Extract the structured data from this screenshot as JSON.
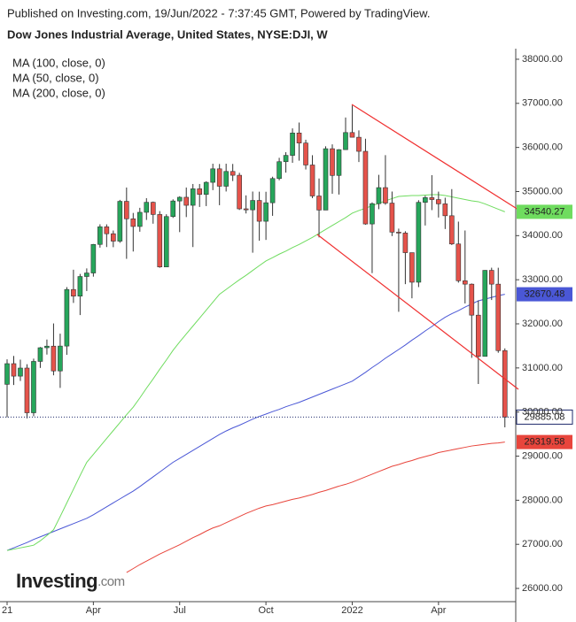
{
  "header": {
    "published": "Published on Investing.com, 19/Jun/2022 - 7:37:45 GMT, Powered by TradingView."
  },
  "logo": {
    "name": "Investing",
    "suffix": ".com"
  },
  "chart_data": {
    "type": "candlestick",
    "title": "Dow Jones Industrial Average, United States, NYSE:DJI, W",
    "categories": [
      "21",
      null,
      null,
      null,
      null,
      null,
      null,
      null,
      null,
      null,
      null,
      null,
      null,
      "Apr",
      null,
      null,
      null,
      null,
      null,
      null,
      null,
      null,
      null,
      null,
      null,
      null,
      "Jul",
      null,
      null,
      null,
      null,
      null,
      null,
      null,
      null,
      null,
      null,
      null,
      null,
      "Oct",
      null,
      null,
      null,
      null,
      null,
      null,
      null,
      null,
      null,
      null,
      null,
      null,
      "2022",
      null,
      null,
      null,
      null,
      null,
      null,
      null,
      null,
      null,
      null,
      null,
      null,
      "Apr",
      null,
      null,
      null,
      null,
      null,
      null,
      null,
      null,
      null,
      null
    ],
    "open": [
      30628,
      31097,
      30814,
      30997,
      29983,
      31148,
      31458,
      31494,
      30932,
      31496,
      32779,
      32628,
      33073,
      33153,
      33801,
      34200,
      34043,
      33875,
      34778,
      34382,
      34208,
      34529,
      34756,
      34480,
      33290,
      34433,
      34786,
      34870,
      34688,
      35062,
      34935,
      35209,
      35515,
      35120,
      35456,
      35369,
      34608,
      34585,
      34798,
      34326,
      34746,
      35295,
      35677,
      35820,
      36328,
      36100,
      35602,
      34899,
      34580,
      35971,
      35365,
      35950,
      36338,
      36231,
      35912,
      34265,
      34725,
      35089,
      34738,
      34079,
      34059,
      33614,
      32944,
      34755,
      34862,
      34818,
      34721,
      34451,
      33811,
      32977,
      32900,
      32197,
      31262,
      33213,
      32900,
      31393
    ],
    "high": [
      31194,
      31272,
      31188,
      31084,
      31211,
      31474,
      31644,
      32009,
      31777,
      32833,
      33227,
      33132,
      33257,
      33810,
      34257,
      34256,
      34116,
      34811,
      35091,
      34515,
      34631,
      34849,
      34773,
      34556,
      34485,
      34823,
      34893,
      35091,
      35171,
      35171,
      35233,
      35631,
      35625,
      35631,
      35626,
      35425,
      34913,
      35000,
      34997,
      34995,
      35336,
      35765,
      35892,
      36432,
      36565,
      36175,
      35824,
      35296,
      36026,
      36070,
      35961,
      36679,
      36952,
      36387,
      36198,
      34754,
      35379,
      35825,
      35000,
      34159,
      34100,
      33615,
      34804,
      34905,
      35372,
      34998,
      34860,
      35055,
      34318,
      34117,
      32915,
      32530,
      33218,
      33273,
      33272,
      31443
    ],
    "low": [
      29882,
      30613,
      30704,
      29856,
      29904,
      31000,
      31303,
      30833,
      30547,
      31297,
      32474,
      32199,
      32744,
      33070,
      33728,
      33741,
      33738,
      33837,
      33474,
      33640,
      34089,
      34356,
      34271,
      33271,
      33290,
      34402,
      34080,
      34421,
      33741,
      34650,
      34670,
      35032,
      34690,
      35001,
      35238,
      34582,
      34503,
      33613,
      33885,
      33903,
      34449,
      35255,
      35429,
      35652,
      35700,
      35500,
      34850,
      33960,
      34580,
      34950,
      34932,
      35950,
      36230,
      35669,
      34248,
      33150,
      34600,
      34700,
      33990,
      32273,
      32900,
      32579,
      32833,
      34230,
      34579,
      34411,
      34150,
      33787,
      32934,
      32462,
      31229,
      30636,
      31262,
      32540,
      31344,
      29653
    ],
    "close": [
      31097,
      30814,
      30997,
      29983,
      31148,
      31458,
      31494,
      30932,
      31496,
      32779,
      32628,
      33073,
      33153,
      33801,
      34200,
      34043,
      33875,
      34778,
      34382,
      34208,
      34529,
      34756,
      34480,
      33290,
      34433,
      34786,
      34870,
      34688,
      35062,
      34935,
      35209,
      35515,
      35120,
      35456,
      35369,
      34608,
      34585,
      34798,
      34326,
      34746,
      35295,
      35677,
      35820,
      36328,
      36100,
      35602,
      34899,
      34580,
      35971,
      35365,
      35950,
      36338,
      36231,
      35912,
      34265,
      34725,
      35089,
      34738,
      34079,
      34059,
      33614,
      32944,
      34755,
      34862,
      34818,
      34721,
      34451,
      33811,
      32977,
      32900,
      32197,
      31262,
      33213,
      32900,
      31393,
      29885.08
    ],
    "up_color": "#26a65b",
    "down_color": "#e5534b",
    "series": [
      {
        "name": "MA (100, close, 0)",
        "color": "#4a57d6",
        "values": [
          26862,
          26920,
          26980,
          27040,
          27110,
          27170,
          27230,
          27290,
          27350,
          27410,
          27470,
          27530,
          27590,
          27670,
          27760,
          27850,
          27940,
          28030,
          28120,
          28207,
          28310,
          28420,
          28530,
          28640,
          28750,
          28860,
          28950,
          29040,
          29130,
          29220,
          29310,
          29400,
          29490,
          29570,
          29640,
          29700,
          29770,
          29840,
          29900,
          29953,
          30010,
          30060,
          30120,
          30170,
          30220,
          30280,
          30340,
          30400,
          30460,
          30520,
          30580,
          30640,
          30700,
          30800,
          30900,
          31010,
          31110,
          31220,
          31320,
          31418,
          31520,
          31630,
          31730,
          31840,
          31940,
          32050,
          32150,
          32230,
          32300,
          32380,
          32450,
          32522,
          32560,
          32600,
          32640,
          32670.48
        ]
      },
      {
        "name": "MA (50, close, 0)",
        "color": "#6fdc5f",
        "values": [
          26862,
          26890,
          26920,
          26950,
          26980,
          27080,
          27200,
          27330,
          27630,
          27940,
          28250,
          28560,
          28860,
          29040,
          29220,
          29400,
          29580,
          29760,
          29940,
          30110,
          30320,
          30540,
          30750,
          30970,
          31180,
          31400,
          31590,
          31770,
          31950,
          32130,
          32310,
          32490,
          32670,
          32780,
          32890,
          33000,
          33100,
          33210,
          33320,
          33425,
          33500,
          33580,
          33650,
          33730,
          33800,
          33880,
          33960,
          34050,
          34140,
          34230,
          34320,
          34410,
          34510,
          34570,
          34620,
          34680,
          34730,
          34790,
          34840,
          34890,
          34900,
          34910,
          34910,
          34920,
          34930,
          34930,
          34910,
          34880,
          34850,
          34820,
          34790,
          34770,
          34720,
          34660,
          34600,
          34540.27
        ]
      },
      {
        "name": "MA (200, close, 0)",
        "color": "#e8453c",
        "values": [
          null,
          null,
          null,
          null,
          null,
          null,
          null,
          null,
          null,
          null,
          null,
          null,
          null,
          null,
          null,
          null,
          null,
          null,
          26360,
          26450,
          26540,
          26620,
          26700,
          26780,
          26850,
          26920,
          26990,
          27070,
          27150,
          27220,
          27300,
          27370,
          27420,
          27490,
          27560,
          27630,
          27700,
          27760,
          27820,
          27870,
          27900,
          27940,
          27980,
          28020,
          28050,
          28090,
          28130,
          28180,
          28220,
          28270,
          28320,
          28360,
          28410,
          28470,
          28530,
          28590,
          28650,
          28710,
          28770,
          28810,
          28860,
          28900,
          28950,
          28990,
          29030,
          29080,
          29110,
          29140,
          29170,
          29200,
          29230,
          29250,
          29270,
          29290,
          29300,
          29319.58
        ]
      }
    ],
    "ylim": [
      25700,
      38240
    ],
    "yticks": [
      {
        "value": 26000,
        "label": "26000.00"
      },
      {
        "value": 27000,
        "label": "27000.00"
      },
      {
        "value": 28000,
        "label": "28000.00"
      },
      {
        "value": 29000,
        "label": "29000.00"
      },
      {
        "value": 30000,
        "label": "30000.00"
      },
      {
        "value": 31000,
        "label": "31000.00"
      },
      {
        "value": 32000,
        "label": "32000.00"
      },
      {
        "value": 33000,
        "label": "33000.00"
      },
      {
        "value": 34000,
        "label": "34000.00"
      },
      {
        "value": 35000,
        "label": "35000.00"
      },
      {
        "value": 36000,
        "label": "36000.00"
      },
      {
        "value": 37000,
        "label": "37000.00"
      },
      {
        "value": 38000,
        "label": "38000.00"
      }
    ],
    "grid": false
  }
}
